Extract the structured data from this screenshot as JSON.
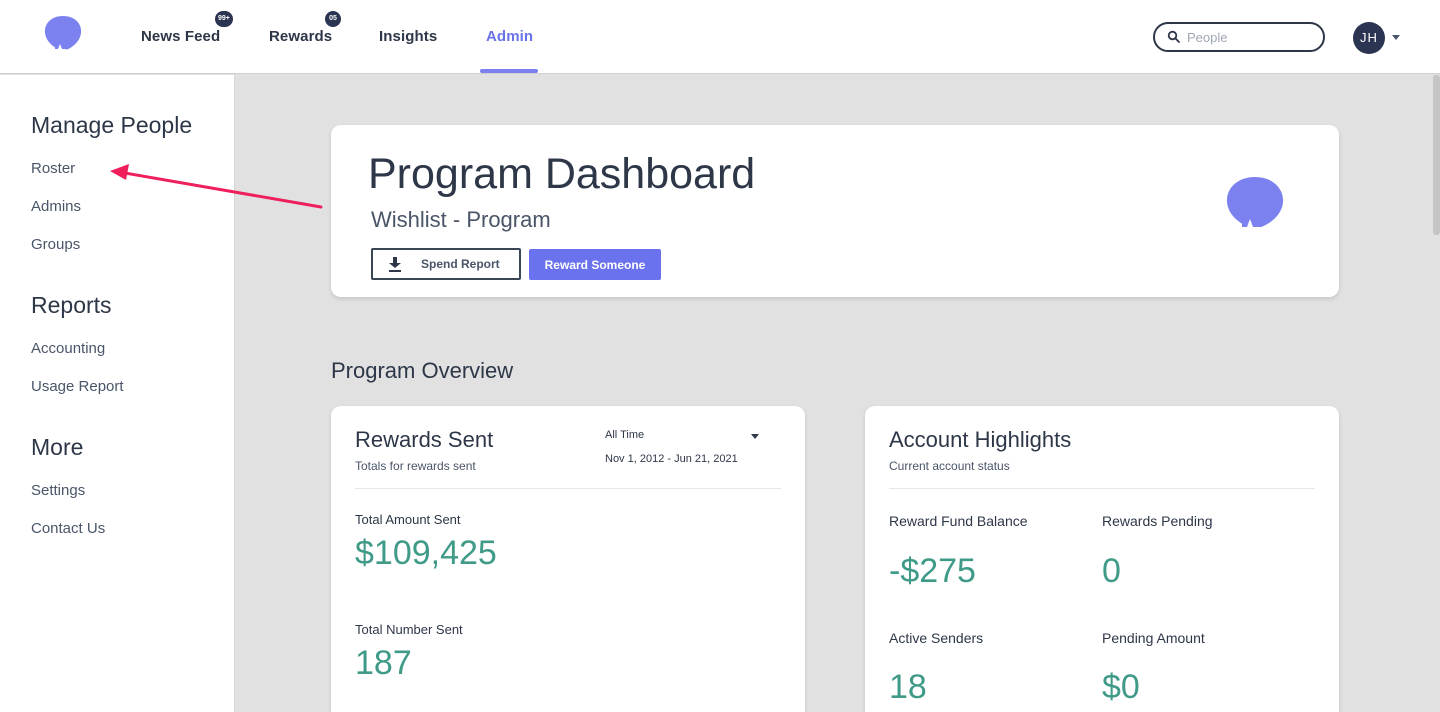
{
  "nav": {
    "items": [
      {
        "label": "News Feed",
        "badge": "99+"
      },
      {
        "label": "Rewards",
        "badge": "05"
      },
      {
        "label": "Insights"
      },
      {
        "label": "Admin",
        "active": true
      }
    ],
    "search_placeholder": "People",
    "avatar_initials": "JH"
  },
  "sidebar": {
    "sections": [
      {
        "heading": "Manage People",
        "links": [
          "Roster",
          "Admins",
          "Groups"
        ]
      },
      {
        "heading": "Reports",
        "links": [
          "Accounting",
          "Usage Report"
        ]
      },
      {
        "heading": "More",
        "links": [
          "Settings",
          "Contact Us"
        ]
      }
    ]
  },
  "dashboard": {
    "title": "Program Dashboard",
    "subtitle": "Wishlist - Program",
    "spend_report_label": "Spend Report",
    "reward_someone_label": "Reward Someone"
  },
  "overview": {
    "title": "Program Overview",
    "rewards_sent": {
      "title": "Rewards Sent",
      "subtitle": "Totals for rewards sent",
      "range_label": "All Time",
      "range_dates": "Nov 1, 2012 - Jun 21, 2021",
      "total_amount_label": "Total Amount Sent",
      "total_amount_value": "$109,425",
      "total_number_label": "Total Number Sent",
      "total_number_value": "187"
    },
    "account_highlights": {
      "title": "Account Highlights",
      "subtitle": "Current account status",
      "fund_balance_label": "Reward Fund Balance",
      "fund_balance_value": "-$275",
      "rewards_pending_label": "Rewards Pending",
      "rewards_pending_value": "0",
      "active_senders_label": "Active Senders",
      "active_senders_value": "18",
      "pending_amount_label": "Pending Amount",
      "pending_amount_value": "$0"
    }
  },
  "colors": {
    "accent": "#6a72ee",
    "brand_balloon": "#7b82f0",
    "value_teal": "#3f9a87",
    "annotation_arrow": "#ee1f5b"
  }
}
